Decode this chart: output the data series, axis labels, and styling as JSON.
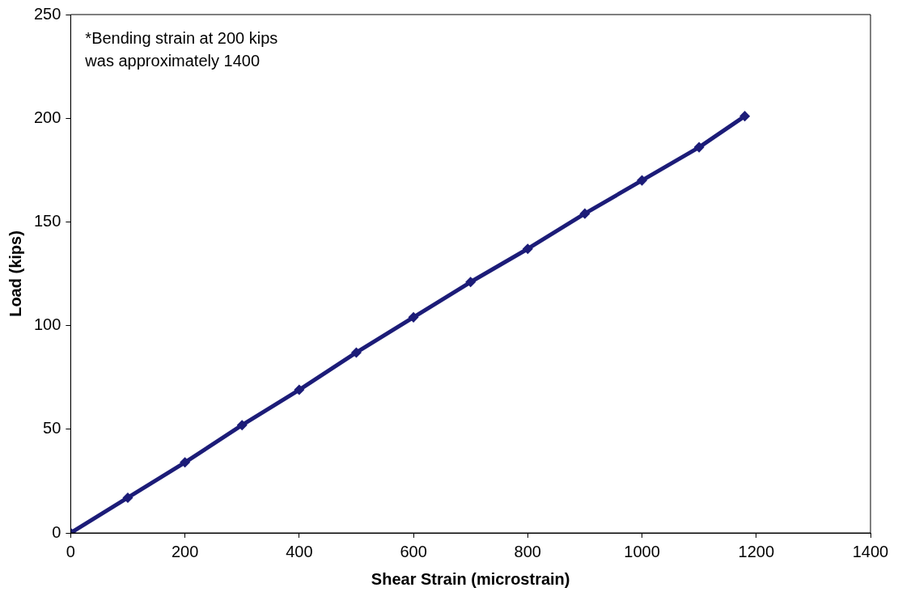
{
  "chart_data": {
    "type": "line",
    "xlabel": "Shear Strain (microstrain)",
    "ylabel": "Load (kips)",
    "annotations": [
      "*Bending strain at 200 kips\nwas approximately 1400"
    ],
    "x": [
      0,
      100,
      200,
      300,
      400,
      500,
      600,
      700,
      800,
      900,
      1000,
      1100,
      1180
    ],
    "series": [
      {
        "color": "#1c1c78",
        "values": [
          0,
          17,
          34,
          52,
          69,
          87,
          104,
          121,
          137,
          154,
          170,
          186,
          201
        ]
      }
    ],
    "xlim": [
      0,
      1400
    ],
    "xticks": [
      0,
      200,
      400,
      600,
      800,
      1000,
      1200,
      1400
    ],
    "ylim": [
      0,
      250
    ],
    "yticks": [
      0,
      50,
      100,
      150,
      200,
      250
    ],
    "grid": false,
    "legend": false,
    "marker": "diamond",
    "line_style": "solid"
  }
}
